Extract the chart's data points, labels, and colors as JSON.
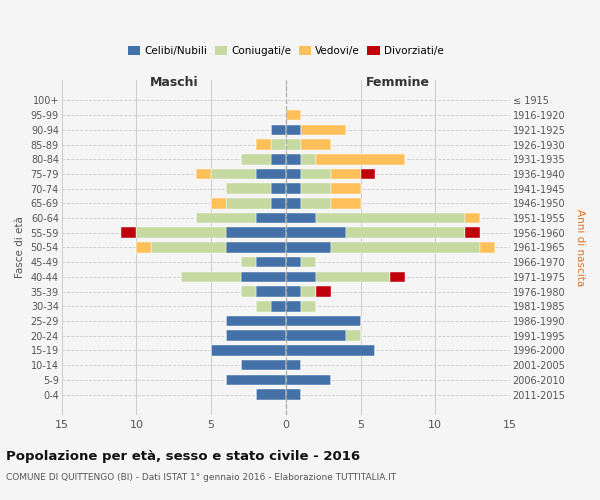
{
  "age_groups": [
    "100+",
    "95-99",
    "90-94",
    "85-89",
    "80-84",
    "75-79",
    "70-74",
    "65-69",
    "60-64",
    "55-59",
    "50-54",
    "45-49",
    "40-44",
    "35-39",
    "30-34",
    "25-29",
    "20-24",
    "15-19",
    "10-14",
    "5-9",
    "0-4"
  ],
  "birth_years": [
    "≤ 1915",
    "1916-1920",
    "1921-1925",
    "1926-1930",
    "1931-1935",
    "1936-1940",
    "1941-1945",
    "1946-1950",
    "1951-1955",
    "1956-1960",
    "1961-1965",
    "1966-1970",
    "1971-1975",
    "1976-1980",
    "1981-1985",
    "1986-1990",
    "1991-1995",
    "1996-2000",
    "2001-2005",
    "2006-2010",
    "2011-2015"
  ],
  "maschi_celibi": [
    0,
    0,
    1,
    0,
    1,
    2,
    1,
    1,
    2,
    4,
    4,
    2,
    3,
    2,
    1,
    4,
    4,
    5,
    3,
    4,
    2
  ],
  "maschi_coniugati": [
    0,
    0,
    0,
    1,
    2,
    3,
    3,
    3,
    4,
    6,
    5,
    1,
    4,
    1,
    1,
    0,
    0,
    0,
    0,
    0,
    0
  ],
  "maschi_vedovi": [
    0,
    0,
    0,
    1,
    0,
    1,
    0,
    1,
    0,
    0,
    1,
    0,
    0,
    0,
    0,
    0,
    0,
    0,
    0,
    0,
    0
  ],
  "maschi_divorziati": [
    0,
    0,
    0,
    0,
    0,
    0,
    0,
    0,
    0,
    1,
    0,
    0,
    0,
    0,
    0,
    0,
    0,
    0,
    0,
    0,
    0
  ],
  "femmine_nubili": [
    0,
    0,
    1,
    0,
    1,
    1,
    1,
    1,
    2,
    4,
    3,
    1,
    2,
    1,
    1,
    5,
    4,
    6,
    1,
    3,
    1
  ],
  "femmine_coniugate": [
    0,
    0,
    0,
    1,
    1,
    2,
    2,
    2,
    10,
    8,
    10,
    1,
    5,
    1,
    1,
    0,
    1,
    0,
    0,
    0,
    0
  ],
  "femmine_vedove": [
    0,
    1,
    3,
    2,
    6,
    2,
    2,
    2,
    1,
    0,
    1,
    0,
    0,
    0,
    0,
    0,
    0,
    0,
    0,
    0,
    0
  ],
  "femmine_divorziate": [
    0,
    0,
    0,
    0,
    0,
    1,
    0,
    0,
    0,
    1,
    0,
    0,
    1,
    1,
    0,
    0,
    0,
    0,
    0,
    0,
    0
  ],
  "color_celibi": "#4472a8",
  "color_coniugati": "#c5d9a0",
  "color_vedovi": "#ffc05a",
  "color_divorziati": "#c0000a",
  "xlim": 15,
  "title": "Popolazione per età, sesso e stato civile - 2016",
  "subtitle": "COMUNE DI QUITTENGO (BI) - Dati ISTAT 1° gennaio 2016 - Elaborazione TUTTITALIA.IT",
  "legend_labels": [
    "Celibi/Nubili",
    "Coniugati/e",
    "Vedovi/e",
    "Divorziati/e"
  ],
  "label_maschi": "Maschi",
  "label_femmine": "Femmine",
  "ylabel_left": "Fasce di età",
  "ylabel_right": "Anni di nascita",
  "bg_color": "#f5f5f5"
}
